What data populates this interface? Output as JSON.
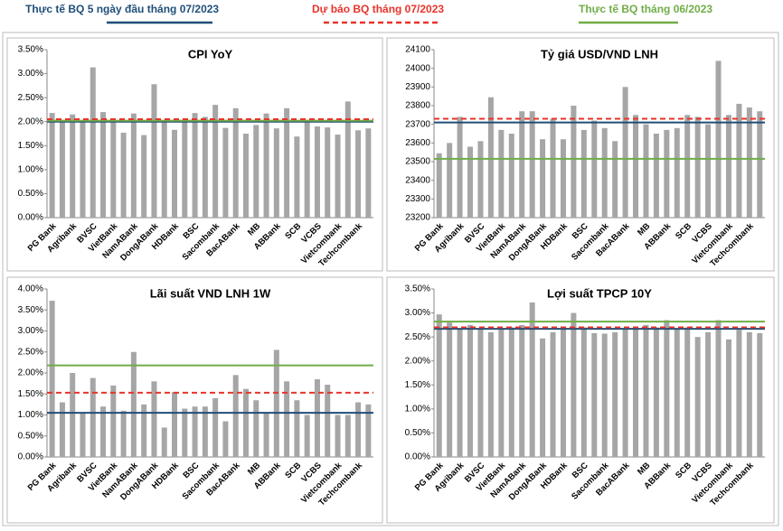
{
  "legend": [
    {
      "name": "Thực tế BQ 5 ngày đầu tháng 07/2023",
      "color": "#1f4e79",
      "dash": false
    },
    {
      "name": "Dự báo BQ tháng 07/2023",
      "color": "#e8332a",
      "dash": true
    },
    {
      "name": "Thực tế BQ tháng 06/2023",
      "color": "#70ad47",
      "dash": false
    }
  ],
  "chart_data": [
    {
      "type": "bar",
      "title": "CPI YoY",
      "color": "#a6a6a6",
      "categories": [
        "PG Bank",
        null,
        "Agribank",
        null,
        "BVSC",
        null,
        "VietBank",
        null,
        "NamABank",
        null,
        "DongABank",
        null,
        "HDBank",
        null,
        "BSC",
        null,
        "Sacombank",
        null,
        "BacABank",
        null,
        "MB",
        null,
        "ABBank",
        null,
        "SCB",
        null,
        "VCBS",
        null,
        "Vietcombank",
        null,
        "Techcombank",
        null
      ],
      "values": [
        2.18,
        2.0,
        2.15,
        2.0,
        3.13,
        2.2,
        2.0,
        1.77,
        2.17,
        1.72,
        2.78,
        2.0,
        1.83,
        2.0,
        2.18,
        2.1,
        2.35,
        1.87,
        2.28,
        1.75,
        1.93,
        2.17,
        1.86,
        2.28,
        1.69,
        2.0,
        1.9,
        1.88,
        1.73,
        2.42,
        1.82,
        1.86
      ],
      "reference_lines": [
        2.0,
        2.05,
        2.02
      ],
      "ylim": [
        0,
        3.5
      ],
      "yticks": [
        {
          "value": 0,
          "label": "0.00%"
        },
        {
          "value": 0.5,
          "label": "0.50%"
        },
        {
          "value": 1,
          "label": "1.00%"
        },
        {
          "value": 1.5,
          "label": "1.50%"
        },
        {
          "value": 2,
          "label": "2.00%"
        },
        {
          "value": 2.5,
          "label": "2.50%"
        },
        {
          "value": 3,
          "label": "3.00%"
        },
        {
          "value": 3.5,
          "label": "3.50%"
        }
      ]
    },
    {
      "type": "bar",
      "title": "Tỷ giá USD/VND LNH",
      "color": "#a6a6a6",
      "categories": [
        "PG Bank",
        null,
        "Agribank",
        null,
        "BVSC",
        null,
        "VietBank",
        null,
        "NamABank",
        null,
        "DongABank",
        null,
        "HDBank",
        null,
        "BSC",
        null,
        "Sacombank",
        null,
        "BacABank",
        null,
        "MB",
        null,
        "ABBank",
        null,
        "SCB",
        null,
        "VCBS",
        null,
        "Vietcombank",
        null,
        "Techcombank",
        null
      ],
      "values": [
        23545,
        23600,
        23740,
        23580,
        23610,
        23845,
        23670,
        23650,
        23770,
        23770,
        23620,
        23730,
        23620,
        23800,
        23670,
        23720,
        23680,
        23610,
        23900,
        23750,
        23700,
        23650,
        23670,
        23680,
        23750,
        23740,
        23700,
        24040,
        23750,
        23810,
        23790,
        23770
      ],
      "reference_lines": [
        23710,
        23730,
        23515
      ],
      "ylim": [
        23200,
        24100
      ],
      "yticks": [
        23200,
        23300,
        23400,
        23500,
        23600,
        23700,
        23800,
        23900,
        24000,
        24100
      ]
    },
    {
      "type": "bar",
      "title": "Lãi suất VND LNH 1W",
      "color": "#a6a6a6",
      "categories": [
        "PG Bank",
        null,
        "Agribank",
        null,
        "BVSC",
        null,
        "VietBank",
        null,
        "NamABank",
        null,
        "DongABank",
        null,
        "HDBank",
        null,
        "BSC",
        null,
        "Sacombank",
        null,
        "BacABank",
        null,
        "MB",
        null,
        "ABBank",
        null,
        "SCB",
        null,
        "VCBS",
        null,
        "Vietcombank",
        null,
        "Techcombank",
        null
      ],
      "values": [
        3.72,
        1.3,
        2.0,
        1.05,
        1.88,
        1.2,
        1.7,
        1.1,
        2.5,
        1.25,
        1.8,
        0.7,
        1.55,
        1.15,
        1.2,
        1.2,
        1.4,
        0.85,
        1.95,
        1.62,
        1.35,
        1.05,
        2.55,
        1.8,
        1.35,
        1.0,
        1.85,
        1.72,
        1.0,
        1.0,
        1.3,
        1.25
      ],
      "reference_lines": [
        1.05,
        1.53,
        2.18
      ],
      "ylim": [
        0,
        4
      ],
      "yticks": [
        {
          "value": 0,
          "label": "0.00%"
        },
        {
          "value": 0.5,
          "label": "0.50%"
        },
        {
          "value": 1,
          "label": "1.00%"
        },
        {
          "value": 1.5,
          "label": "1.50%"
        },
        {
          "value": 2,
          "label": "2.00%"
        },
        {
          "value": 2.5,
          "label": "2.50%"
        },
        {
          "value": 3,
          "label": "3.00%"
        },
        {
          "value": 3.5,
          "label": "3.50%"
        },
        {
          "value": 4,
          "label": "4.00%"
        }
      ]
    },
    {
      "type": "bar",
      "title": "Lợi suất TPCP 10Y",
      "color": "#a6a6a6",
      "categories": [
        "PG Bank",
        null,
        "Agribank",
        null,
        "BVSC",
        null,
        "VietBank",
        null,
        "NamABank",
        null,
        "DongABank",
        null,
        "HDBank",
        null,
        "BSC",
        null,
        "Sacombank",
        null,
        "BacABank",
        null,
        "MB",
        null,
        "ABBank",
        null,
        "SCB",
        null,
        "VCBS",
        null,
        "Vietcombank",
        null,
        "Techcombank",
        null
      ],
      "values": [
        2.97,
        2.8,
        2.68,
        2.75,
        2.68,
        2.6,
        2.68,
        2.7,
        2.75,
        3.22,
        2.47,
        2.6,
        2.68,
        3.0,
        2.7,
        2.58,
        2.57,
        2.6,
        2.68,
        2.72,
        2.75,
        2.7,
        2.85,
        2.68,
        2.7,
        2.5,
        2.6,
        2.85,
        2.45,
        2.65,
        2.6,
        2.58
      ],
      "reference_lines": [
        2.67,
        2.7,
        2.82
      ],
      "ylim": [
        0,
        3.5
      ],
      "yticks": [
        {
          "value": 0,
          "label": "0.00%"
        },
        {
          "value": 0.5,
          "label": "0.50%"
        },
        {
          "value": 1,
          "label": "1.00%"
        },
        {
          "value": 1.5,
          "label": "1.50%"
        },
        {
          "value": 2,
          "label": "2.00%"
        },
        {
          "value": 2.5,
          "label": "2.50%"
        },
        {
          "value": 3,
          "label": "3.00%"
        },
        {
          "value": 3.5,
          "label": "3.50%"
        }
      ]
    }
  ]
}
